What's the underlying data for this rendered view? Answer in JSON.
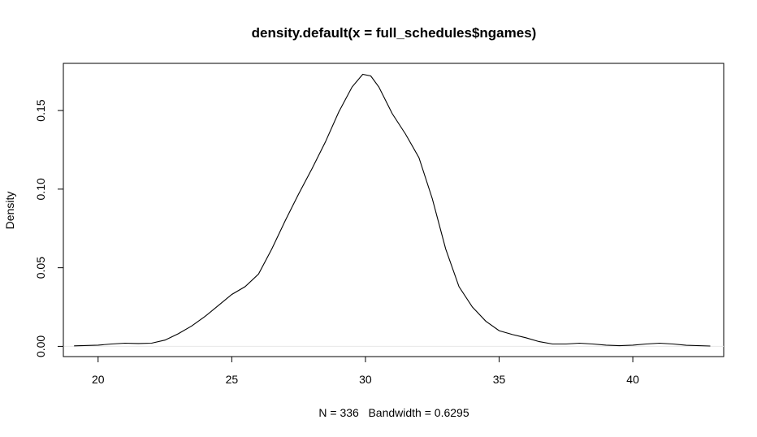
{
  "chart_data": {
    "type": "line",
    "title": "density.default(x = full_schedules$ngames)",
    "xlabel": "N = 336   Bandwidth = 0.6295",
    "ylabel": "Density",
    "xlim": [
      18.7,
      43.4
    ],
    "ylim": [
      -0.0065,
      0.18
    ],
    "x_ticks": [
      20,
      25,
      30,
      35,
      40
    ],
    "x_tick_labels": [
      "20",
      "25",
      "30",
      "35",
      "40"
    ],
    "y_ticks": [
      0.0,
      0.05,
      0.1,
      0.15
    ],
    "y_tick_labels": [
      "0.00",
      "0.05",
      "0.10",
      "0.15"
    ],
    "grid": false,
    "baseline": 0,
    "series": [
      {
        "x": [
          19.1,
          20.0,
          20.5,
          21.0,
          21.5,
          22.0,
          22.5,
          23.0,
          23.5,
          24.0,
          24.5,
          25.0,
          25.5,
          26.0,
          26.5,
          27.0,
          27.5,
          28.0,
          28.5,
          29.0,
          29.5,
          29.9,
          30.2,
          30.5,
          31.0,
          31.5,
          32.0,
          32.5,
          33.0,
          33.5,
          34.0,
          34.5,
          35.0,
          35.5,
          36.0,
          36.5,
          37.0,
          37.5,
          38.0,
          38.5,
          39.0,
          39.5,
          40.0,
          40.5,
          41.0,
          41.5,
          42.0,
          42.9
        ],
        "y": [
          0.0003,
          0.0008,
          0.0015,
          0.002,
          0.0018,
          0.002,
          0.004,
          0.008,
          0.013,
          0.019,
          0.026,
          0.033,
          0.038,
          0.046,
          0.062,
          0.08,
          0.097,
          0.113,
          0.13,
          0.149,
          0.165,
          0.173,
          0.172,
          0.165,
          0.148,
          0.135,
          0.12,
          0.094,
          0.062,
          0.038,
          0.025,
          0.016,
          0.01,
          0.0075,
          0.0055,
          0.003,
          0.0015,
          0.0015,
          0.002,
          0.0015,
          0.0008,
          0.0004,
          0.0008,
          0.0015,
          0.002,
          0.0015,
          0.0007,
          0.0002
        ]
      }
    ]
  }
}
